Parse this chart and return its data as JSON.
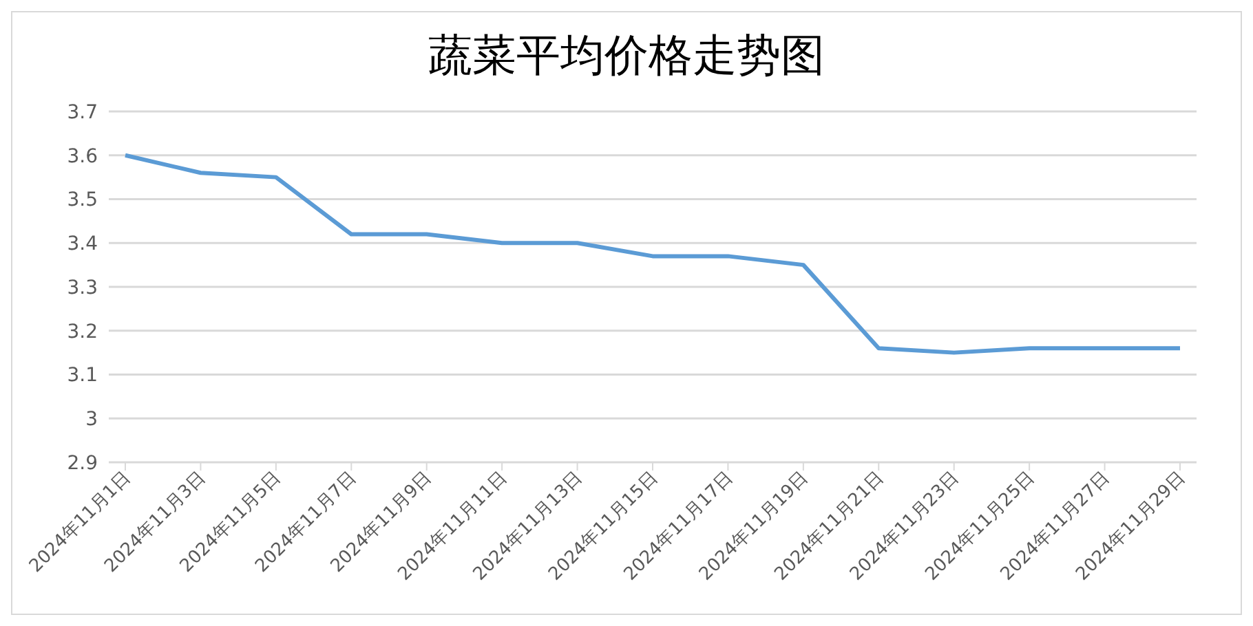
{
  "chart_data": {
    "type": "line",
    "title": "蔬菜平均价格走势图",
    "categories": [
      "2024年11月1日",
      "2024年11月3日",
      "2024年11月5日",
      "2024年11月7日",
      "2024年11月9日",
      "2024年11月11日",
      "2024年11月13日",
      "2024年11月15日",
      "2024年11月17日",
      "2024年11月19日",
      "2024年11月21日",
      "2024年11月23日",
      "2024年11月25日",
      "2024年11月27日",
      "2024年11月29日"
    ],
    "series": [
      {
        "color": "#5b9bd5",
        "values": [
          3.6,
          3.56,
          3.55,
          3.42,
          3.42,
          3.4,
          3.4,
          3.37,
          3.37,
          3.35,
          3.16,
          3.15,
          3.16,
          3.16,
          3.16
        ]
      }
    ],
    "ylim": [
      2.9,
      3.7
    ],
    "yticks": [
      2.9,
      3,
      3.1,
      3.2,
      3.3,
      3.4,
      3.5,
      3.6,
      3.7
    ],
    "grid": "y",
    "legend": false,
    "marker": "none",
    "line_style": "solid"
  }
}
